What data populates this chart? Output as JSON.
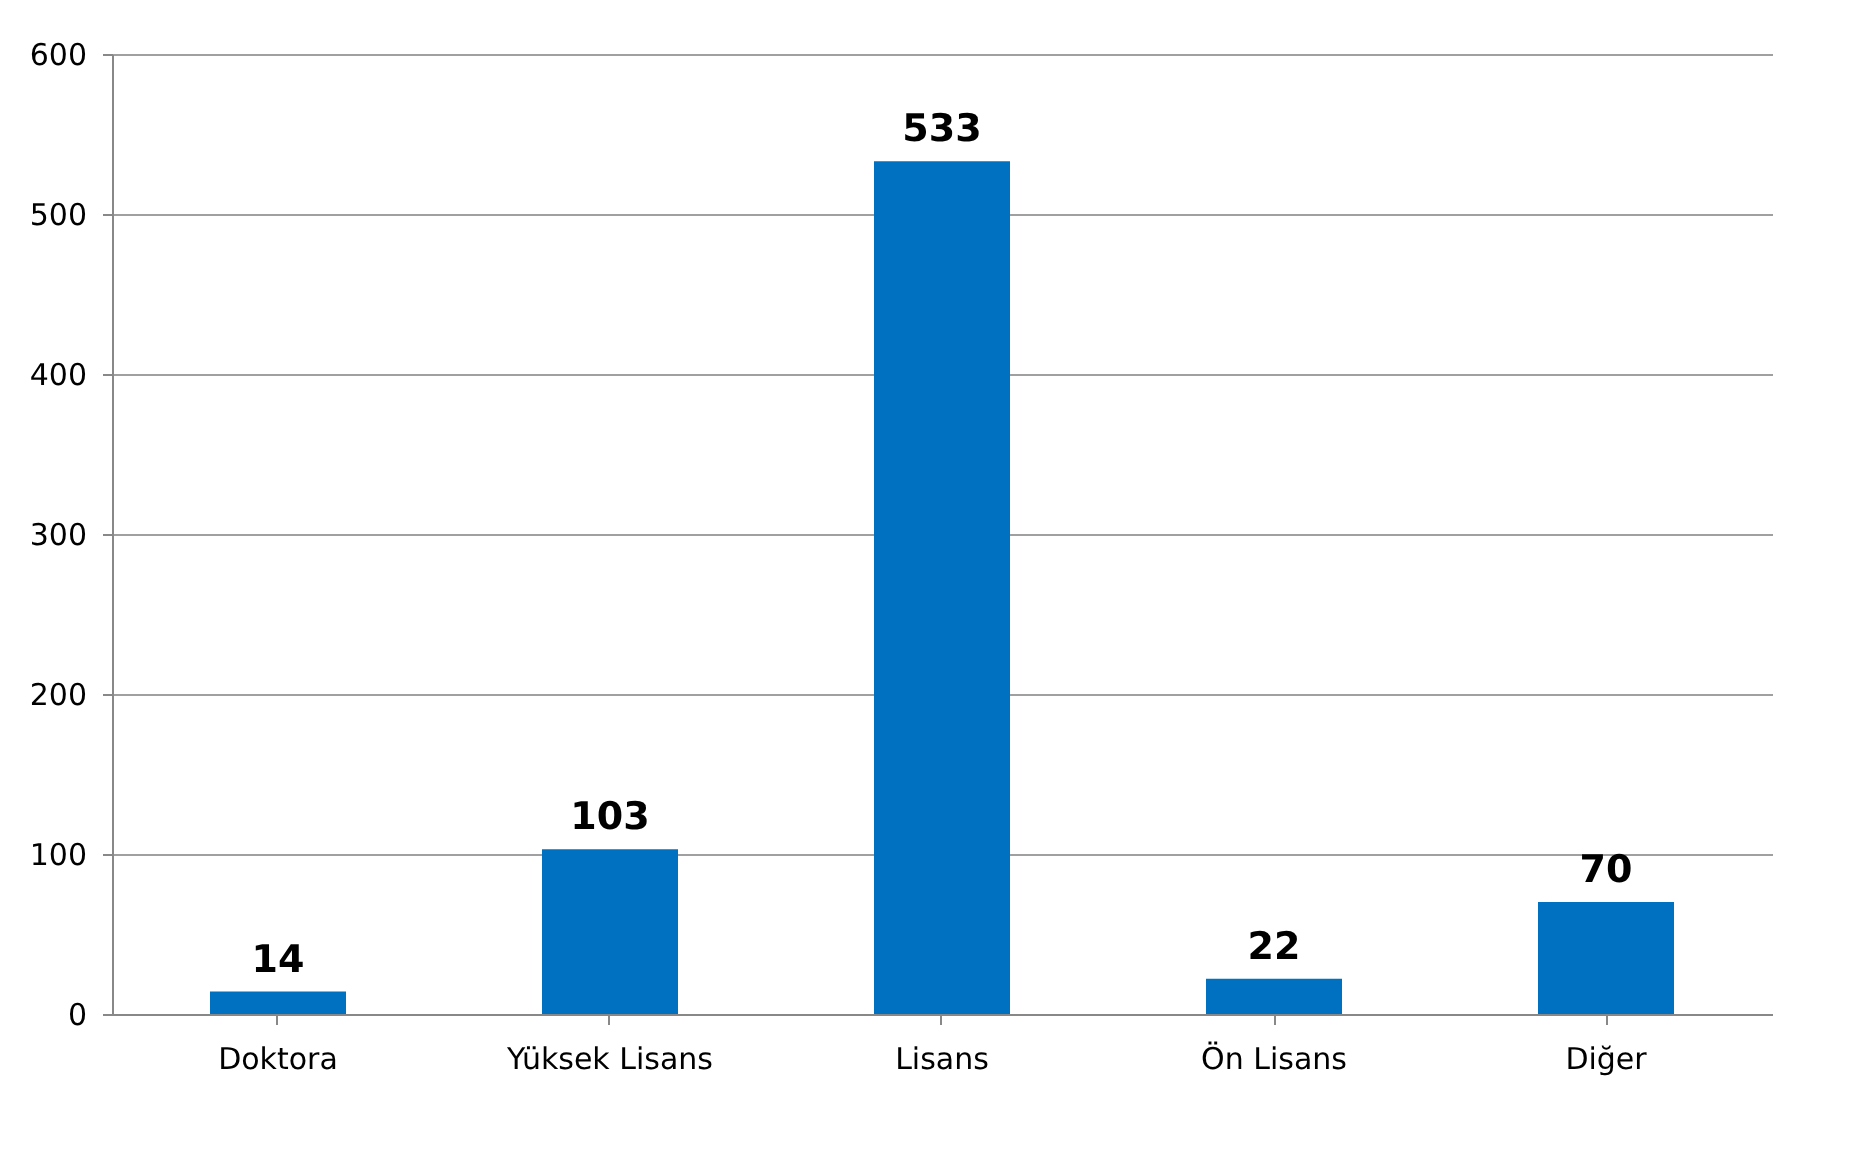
{
  "chart_data": {
    "type": "bar",
    "categories": [
      "Doktora",
      "Yüksek Lisans",
      "Lisans",
      "Ön Lisans",
      "Diğer"
    ],
    "values": [
      14,
      103,
      533,
      22,
      70
    ],
    "color": "#0070c0",
    "ylim": [
      0,
      600
    ],
    "yticks": [
      0,
      100,
      200,
      300,
      400,
      500,
      600
    ],
    "grid": "y",
    "data_labels": true
  }
}
